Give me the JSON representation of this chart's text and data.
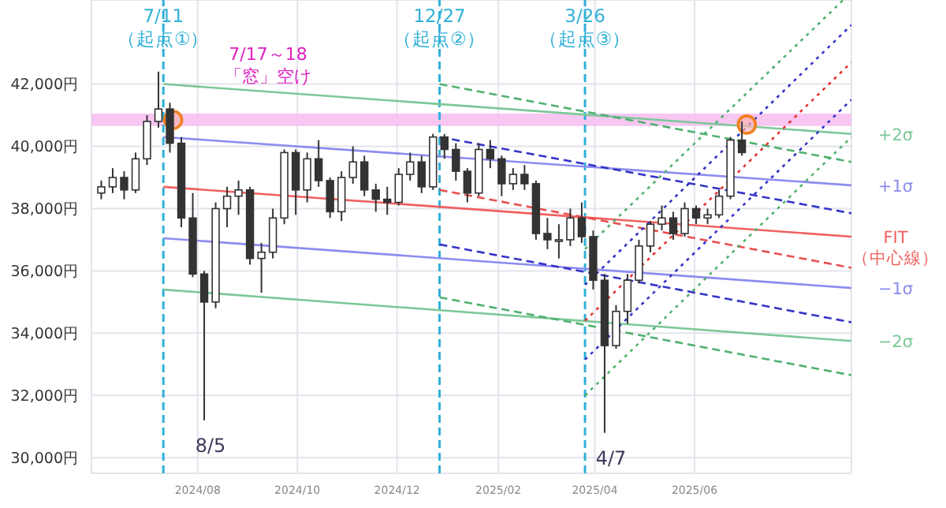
{
  "chart_data": {
    "type": "candlestick",
    "color": "#333333",
    "x": [
      "2024-06-03",
      "2024-06-10",
      "2024-06-17",
      "2024-06-24",
      "2024-07-01",
      "2024-07-08",
      "2024-07-15",
      "2024-07-22",
      "2024-07-29",
      "2024-08-05",
      "2024-08-12",
      "2024-08-19",
      "2024-08-26",
      "2024-09-02",
      "2024-09-09",
      "2024-09-16",
      "2024-09-23",
      "2024-09-30",
      "2024-10-07",
      "2024-10-14",
      "2024-10-21",
      "2024-10-28",
      "2024-11-04",
      "2024-11-11",
      "2024-11-18",
      "2024-11-25",
      "2024-12-02",
      "2024-12-09",
      "2024-12-16",
      "2024-12-23",
      "2024-12-30",
      "2025-01-06",
      "2025-01-13",
      "2025-01-20",
      "2025-01-27",
      "2025-02-03",
      "2025-02-10",
      "2025-02-17",
      "2025-02-24",
      "2025-03-03",
      "2025-03-10",
      "2025-03-17",
      "2025-03-24",
      "2025-03-31",
      "2025-04-07",
      "2025-04-14",
      "2025-04-21",
      "2025-04-28",
      "2025-05-05",
      "2025-05-12",
      "2025-05-19",
      "2025-05-26",
      "2025-06-02",
      "2025-06-09",
      "2025-06-16",
      "2025-06-23",
      "2025-06-30"
    ],
    "ohlc": [
      [
        38500,
        38900,
        38300,
        38700
      ],
      [
        38700,
        39300,
        38500,
        39000
      ],
      [
        39000,
        39200,
        38300,
        38600
      ],
      [
        38600,
        39800,
        38500,
        39600
      ],
      [
        39600,
        41000,
        39400,
        40800
      ],
      [
        40800,
        42400,
        40600,
        41200
      ],
      [
        41200,
        41400,
        39800,
        40100
      ],
      [
        40100,
        40300,
        37400,
        37700
      ],
      [
        37700,
        38500,
        35800,
        35900
      ],
      [
        35900,
        36000,
        31200,
        35000
      ],
      [
        35000,
        38200,
        34800,
        38000
      ],
      [
        38000,
        38700,
        37400,
        38400
      ],
      [
        38400,
        38900,
        37800,
        38600
      ],
      [
        38600,
        38700,
        36200,
        36400
      ],
      [
        36400,
        36900,
        35300,
        36600
      ],
      [
        36600,
        38000,
        36400,
        37700
      ],
      [
        37700,
        39900,
        37500,
        39800
      ],
      [
        39800,
        39900,
        37800,
        38600
      ],
      [
        38600,
        39800,
        38200,
        39600
      ],
      [
        39600,
        40200,
        38700,
        38900
      ],
      [
        38900,
        39000,
        37700,
        37900
      ],
      [
        37900,
        39200,
        37600,
        39000
      ],
      [
        39000,
        40000,
        38800,
        39500
      ],
      [
        39500,
        39700,
        38400,
        38600
      ],
      [
        38600,
        38800,
        37900,
        38300
      ],
      [
        38300,
        38700,
        37800,
        38200
      ],
      [
        38200,
        39300,
        38100,
        39100
      ],
      [
        39100,
        39800,
        38900,
        39500
      ],
      [
        39500,
        39700,
        38500,
        38700
      ],
      [
        38700,
        40400,
        38600,
        40300
      ],
      [
        40300,
        40400,
        39600,
        39900
      ],
      [
        39900,
        40100,
        38900,
        39200
      ],
      [
        39200,
        39300,
        38200,
        38500
      ],
      [
        38500,
        40100,
        38400,
        39900
      ],
      [
        39900,
        40200,
        39300,
        39600
      ],
      [
        39600,
        39700,
        38400,
        38800
      ],
      [
        38800,
        39300,
        38600,
        39100
      ],
      [
        39100,
        39400,
        38600,
        38800
      ],
      [
        38800,
        38900,
        37000,
        37200
      ],
      [
        37200,
        37700,
        36700,
        37000
      ],
      [
        37000,
        37500,
        36400,
        37000
      ],
      [
        37000,
        38000,
        36800,
        37700
      ],
      [
        37700,
        38200,
        36900,
        37100
      ],
      [
        37100,
        37300,
        35400,
        35700
      ],
      [
        35700,
        35900,
        30800,
        33600
      ],
      [
        33600,
        34900,
        33500,
        34700
      ],
      [
        34700,
        35900,
        34300,
        35700
      ],
      [
        35700,
        37000,
        35600,
        36800
      ],
      [
        36800,
        37600,
        36600,
        37500
      ],
      [
        37500,
        38100,
        37300,
        37700
      ],
      [
        37700,
        37900,
        37000,
        37200
      ],
      [
        37200,
        38200,
        37100,
        38000
      ],
      [
        38000,
        38100,
        37500,
        37700
      ],
      [
        37700,
        38000,
        37500,
        37800
      ],
      [
        37800,
        38600,
        37700,
        38400
      ],
      [
        38400,
        40300,
        38300,
        40200
      ],
      [
        40200,
        40800,
        39700,
        39800
      ]
    ],
    "series": [
      {
        "type": "line",
        "name": "+2σ",
        "color": "#7cc898",
        "line_style": "solid",
        "x": [
          "2024-07-11",
          "2025-09-05"
        ],
        "values": [
          42000,
          40400
        ]
      },
      {
        "type": "line",
        "name": "+1σ",
        "color": "#8c8cf0",
        "line_style": "solid",
        "x": [
          "2024-07-11",
          "2025-09-05"
        ],
        "values": [
          40300,
          38750
        ]
      },
      {
        "type": "line",
        "name": "FIT（中心線）",
        "color": "#f06060",
        "line_style": "solid",
        "x": [
          "2024-07-11",
          "2025-09-05"
        ],
        "values": [
          38700,
          37100
        ]
      },
      {
        "type": "line",
        "name": "−1σ",
        "color": "#8c8cf0",
        "line_style": "solid",
        "x": [
          "2024-07-11",
          "2025-09-05"
        ],
        "values": [
          37050,
          35450
        ]
      },
      {
        "type": "line",
        "name": "−2σ",
        "color": "#7cc898",
        "line_style": "solid",
        "x": [
          "2024-07-11",
          "2025-09-05"
        ],
        "values": [
          35400,
          33750
        ]
      },
      {
        "type": "line",
        "color": "#50b070",
        "line_style": "dashed",
        "x": [
          "2024-12-27",
          "2025-09-05"
        ],
        "values": [
          42000,
          39500
        ]
      },
      {
        "type": "line",
        "color": "#3434c8",
        "line_style": "dashed",
        "x": [
          "2024-12-27",
          "2025-09-05"
        ],
        "values": [
          40300,
          37850
        ]
      },
      {
        "type": "line",
        "color": "#e85050",
        "line_style": "dashed",
        "x": [
          "2024-12-27",
          "2025-09-05"
        ],
        "values": [
          38600,
          36100
        ]
      },
      {
        "type": "line",
        "color": "#3434c8",
        "line_style": "dashed",
        "x": [
          "2024-12-27",
          "2025-09-05"
        ],
        "values": [
          36850,
          34350
        ]
      },
      {
        "type": "line",
        "color": "#50b070",
        "line_style": "dashed",
        "x": [
          "2024-12-27",
          "2025-09-05"
        ],
        "values": [
          35150,
          32650
        ]
      },
      {
        "type": "line",
        "color": "#50b070",
        "line_style": "dotted",
        "x": [
          "2025-03-26",
          "2025-08-31"
        ],
        "values": [
          36700,
          44700
        ]
      },
      {
        "type": "line",
        "color": "#3434c8",
        "line_style": "dotted",
        "x": [
          "2025-03-26",
          "2025-09-05"
        ],
        "values": [
          35550,
          43900
        ]
      },
      {
        "type": "line",
        "color": "#e83030",
        "line_style": "dotted",
        "x": [
          "2025-03-26",
          "2025-09-05"
        ],
        "values": [
          34400,
          42700
        ]
      },
      {
        "type": "line",
        "color": "#3434c8",
        "line_style": "dotted",
        "x": [
          "2025-03-26",
          "2025-09-05"
        ],
        "values": [
          33150,
          41500
        ]
      },
      {
        "type": "line",
        "color": "#50b070",
        "line_style": "dotted",
        "x": [
          "2025-03-26",
          "2025-09-05"
        ],
        "values": [
          32000,
          40300
        ]
      },
      {
        "type": "scatter",
        "color": "#f08020",
        "marker": "circle",
        "x": [
          "2024-07-17",
          "2025-07-03"
        ],
        "values": [
          40850,
          40700
        ]
      }
    ],
    "xlim": [
      "2024-05-28",
      "2025-09-05"
    ],
    "xticks": [
      {
        "value": "2024-08-01",
        "label": "2024/08"
      },
      {
        "value": "2024-10-01",
        "label": "2024/10"
      },
      {
        "value": "2024-12-01",
        "label": "2024/12"
      },
      {
        "value": "2025-02-01",
        "label": "2025/02"
      },
      {
        "value": "2025-04-01",
        "label": "2025/04"
      },
      {
        "value": "2025-06-01",
        "label": "2025/06"
      }
    ],
    "ylim": [
      29500,
      44700
    ],
    "yticks": [
      {
        "value": 30000,
        "label": "30,000円"
      },
      {
        "value": 32000,
        "label": "32,000円"
      },
      {
        "value": 34000,
        "label": "34,000円"
      },
      {
        "value": 36000,
        "label": "36,000円"
      },
      {
        "value": 38000,
        "label": "38,000円"
      },
      {
        "value": 40000,
        "label": "40,000円"
      },
      {
        "value": 42000,
        "label": "42,000円"
      }
    ],
    "grid": true,
    "ref_lines": [
      {
        "axis": "x",
        "value": "2024-07-11",
        "label": "7/11\n（起点①）",
        "color": "#30b0d8",
        "line_style": "dashed"
      },
      {
        "axis": "x",
        "value": "2024-12-27",
        "label": "12/27\n（起点②）",
        "color": "#30b0d8",
        "line_style": "dashed"
      },
      {
        "axis": "x",
        "value": "2025-03-26",
        "label": "3/26\n（起点③）",
        "color": "#30b0d8",
        "line_style": "dashed"
      }
    ],
    "bands": [
      {
        "axis": "y",
        "from": 40650,
        "to": 41050,
        "label": "7/17～18\n「窓」空け",
        "color": "#f6c0f0"
      }
    ],
    "annotations": [
      {
        "text": "8/5",
        "x": "2024-08-05",
        "y": 31200
      },
      {
        "text": "4/7",
        "x": "2025-04-07",
        "y": 30800
      }
    ]
  }
}
